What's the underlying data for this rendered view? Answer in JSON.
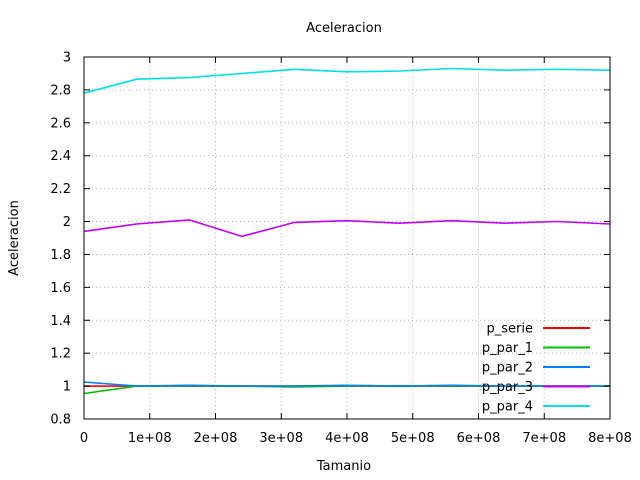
{
  "chart_data": {
    "type": "line",
    "title": "Aceleracion",
    "xlabel": "Tamanio",
    "ylabel": "Aceleracion",
    "xlim": [
      0,
      800000000
    ],
    "ylim": [
      0.8,
      3.0
    ],
    "xticks": [
      0,
      100000000,
      200000000,
      300000000,
      400000000,
      500000000,
      600000000,
      700000000,
      800000000
    ],
    "xtick_labels": [
      "0",
      "1e+08",
      "2e+08",
      "3e+08",
      "4e+08",
      "5e+08",
      "6e+08",
      "7e+08",
      "8e+08"
    ],
    "yticks": [
      0.8,
      1.0,
      1.2,
      1.4,
      1.6,
      1.8,
      2.0,
      2.2,
      2.4,
      2.6,
      2.8,
      3.0
    ],
    "ytick_labels": [
      "0.8",
      "1",
      "1.2",
      "1.4",
      "1.6",
      "1.8",
      "2",
      "2.2",
      "2.4",
      "2.6",
      "2.8",
      "3"
    ],
    "grid": true,
    "legend_position": "bottom-right",
    "x": [
      0,
      80000000,
      160000000,
      240000000,
      320000000,
      400000000,
      480000000,
      560000000,
      640000000,
      720000000,
      800000000
    ],
    "series": [
      {
        "name": "p_serie",
        "color": "#ff0000",
        "values": [
          1.0,
          1.0,
          1.0,
          1.0,
          1.0,
          1.0,
          1.0,
          1.0,
          1.0,
          1.0,
          1.0
        ]
      },
      {
        "name": "p_par_1",
        "color": "#00c000",
        "values": [
          0.955,
          1.0,
          1.0,
          1.0,
          0.995,
          1.0,
          1.0,
          1.0,
          1.0,
          1.0,
          1.0
        ]
      },
      {
        "name": "p_par_2",
        "color": "#0080ff",
        "values": [
          1.025,
          1.0,
          1.005,
          1.0,
          1.0,
          1.005,
          1.0,
          1.005,
          1.0,
          1.0,
          1.0
        ]
      },
      {
        "name": "p_par_3",
        "color": "#c000ff",
        "values": [
          1.94,
          1.985,
          2.01,
          1.91,
          1.995,
          2.005,
          1.99,
          2.005,
          1.99,
          2.0,
          1.985
        ]
      },
      {
        "name": "p_par_4",
        "color": "#00e0e0",
        "values": [
          2.78,
          2.865,
          2.875,
          2.9,
          2.925,
          2.91,
          2.915,
          2.93,
          2.92,
          2.925,
          2.92
        ]
      }
    ]
  }
}
